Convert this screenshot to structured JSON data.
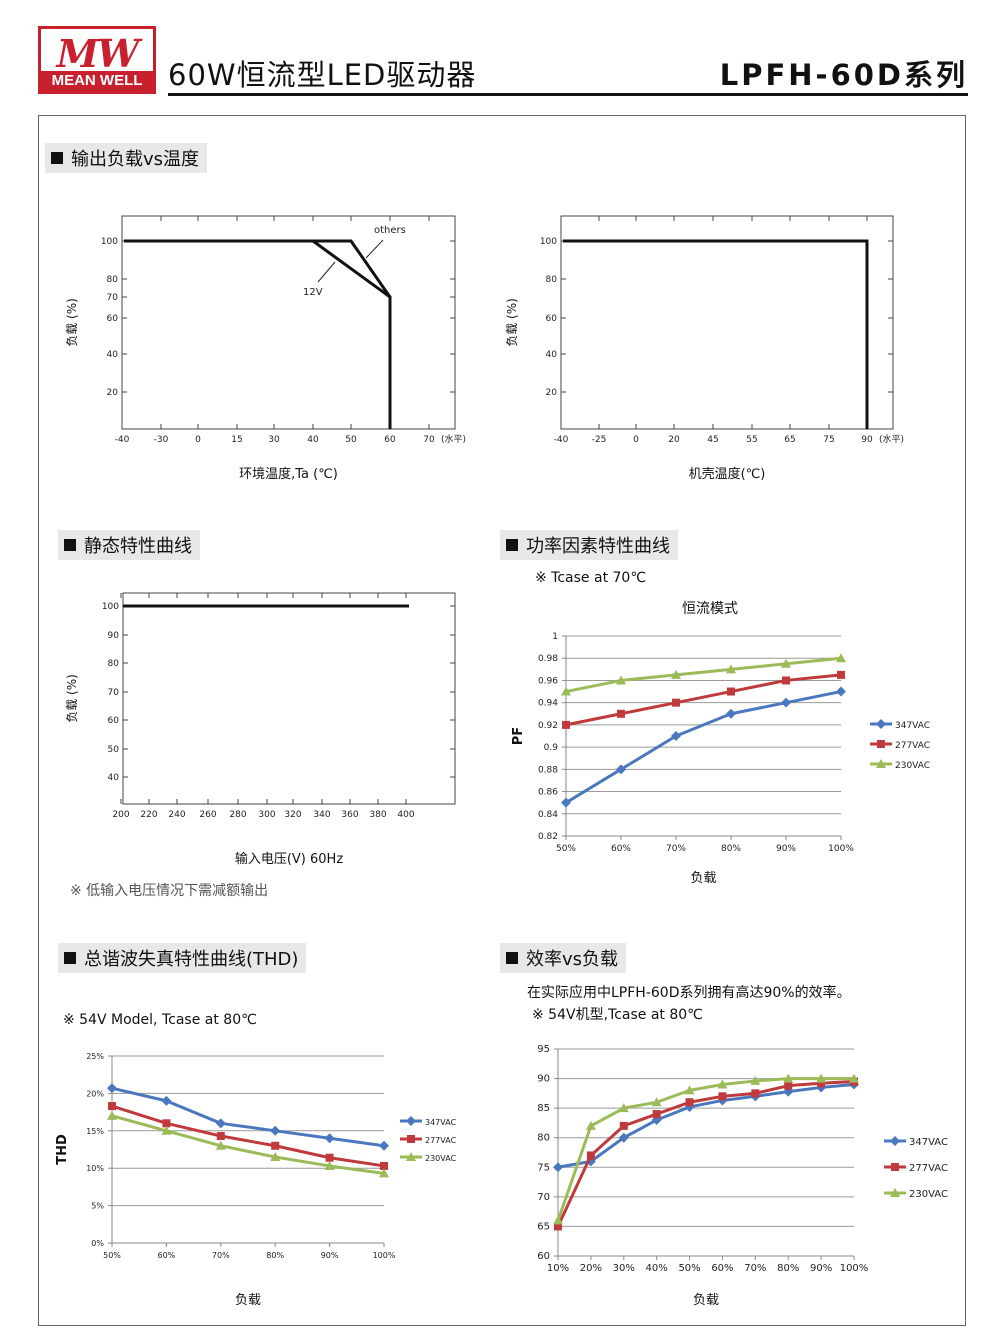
{
  "header": {
    "logo_top": "MW",
    "logo_bottom": "MEAN WELL",
    "title": "60W恒流型LED驱动器",
    "series": "LPFH-60D系列"
  },
  "sections": {
    "derating": "输出负载vs温度",
    "static": "静态特性曲线",
    "pf": "功率因素特性曲线",
    "thd": "总谐波失真特性曲线(THD)",
    "eff": "效率vs负载"
  },
  "notes": {
    "static_note": "※ 低输入电压情况下需减额输出",
    "pf_note": "※ Tcase at 70℃",
    "pf_mode": "恒流模式",
    "thd_note": "※ 54V Model, Tcase at 80℃",
    "eff_desc": "在实际应用中LPFH-60D系列拥有高达90%的效率。",
    "eff_note": "※ 54V机型,Tcase at 80℃"
  },
  "colors": {
    "347VAC": "#4a78be",
    "277VAC": "#c0393b",
    "230VAC": "#9bbb59"
  },
  "chart_data": [
    {
      "type": "line",
      "id": "derating_ambient",
      "xlabel": "环境温度,Ta (℃)",
      "x_unit": "(水平)",
      "ylabel": "负载 (%)",
      "x_ticks": [
        "-40",
        "-30",
        "0",
        "15",
        "30",
        "40",
        "50",
        "60",
        "70"
      ],
      "y_ticks": [
        "100",
        "80",
        "70",
        "60",
        "40",
        "20"
      ],
      "series": [
        {
          "name": "others",
          "points": [
            [
              "-40",
              100
            ],
            [
              "50",
              100
            ],
            [
              "60",
              70
            ],
            [
              "60",
              0
            ]
          ]
        },
        {
          "name": "12V",
          "points": [
            [
              "-40",
              100
            ],
            [
              "40",
              100
            ],
            [
              "60",
              70
            ],
            [
              "60",
              0
            ]
          ]
        }
      ]
    },
    {
      "type": "line",
      "id": "derating_case",
      "xlabel": "机壳温度(℃)",
      "x_unit": "(水平)",
      "ylabel": "负载 (%)",
      "x_ticks": [
        "-40",
        "-25",
        "0",
        "20",
        "45",
        "55",
        "65",
        "75",
        "90"
      ],
      "y_ticks": [
        "100",
        "80",
        "60",
        "40",
        "20"
      ],
      "series": [
        {
          "name": "",
          "points": [
            [
              "-40",
              100
            ],
            [
              "90",
              100
            ],
            [
              "90",
              0
            ]
          ]
        }
      ]
    },
    {
      "type": "line",
      "id": "static",
      "xlabel": "输入电压(V) 60Hz",
      "ylabel": "负载 (%)",
      "x_ticks": [
        "200",
        "220",
        "240",
        "260",
        "280",
        "300",
        "320",
        "340",
        "360",
        "380",
        "400"
      ],
      "y_ticks": [
        "100",
        "90",
        "80",
        "70",
        "60",
        "50",
        "40"
      ],
      "series": [
        {
          "name": "",
          "points": [
            [
              200,
              100
            ],
            [
              400,
              100
            ]
          ]
        }
      ]
    },
    {
      "type": "line",
      "id": "pf",
      "xlabel": "负载",
      "ylabel": "PF",
      "x_ticks": [
        "50%",
        "60%",
        "70%",
        "80%",
        "90%",
        "100%"
      ],
      "y_ticks": [
        "0.82",
        "0.84",
        "0.86",
        "0.88",
        "0.9",
        "0.92",
        "0.94",
        "0.96",
        "0.98",
        "1"
      ],
      "ylim": [
        0.82,
        1
      ],
      "series": [
        {
          "name": "347VAC",
          "values": [
            0.85,
            0.88,
            0.91,
            0.93,
            0.94,
            0.95
          ]
        },
        {
          "name": "277VAC",
          "values": [
            0.92,
            0.93,
            0.94,
            0.95,
            0.96,
            0.965
          ]
        },
        {
          "name": "230VAC",
          "values": [
            0.95,
            0.96,
            0.965,
            0.97,
            0.975,
            0.98
          ]
        }
      ]
    },
    {
      "type": "line",
      "id": "thd",
      "xlabel": "负载",
      "ylabel": "THD",
      "x_ticks": [
        "50%",
        "60%",
        "70%",
        "80%",
        "90%",
        "100%"
      ],
      "y_ticks": [
        "0%",
        "5%",
        "10%",
        "15%",
        "20%",
        "25%"
      ],
      "ylim": [
        0,
        25
      ],
      "series": [
        {
          "name": "347VAC",
          "values": [
            20.7,
            19,
            16,
            15,
            14,
            13
          ]
        },
        {
          "name": "277VAC",
          "values": [
            18.3,
            16,
            14.3,
            13,
            11.4,
            10.3
          ]
        },
        {
          "name": "230VAC",
          "values": [
            17,
            15,
            13,
            11.5,
            10.3,
            9.3
          ]
        }
      ]
    },
    {
      "type": "line",
      "id": "efficiency",
      "xlabel": "负载",
      "ylabel": "",
      "x_ticks": [
        "10%",
        "20%",
        "30%",
        "40%",
        "50%",
        "60%",
        "70%",
        "80%",
        "90%",
        "100%"
      ],
      "y_ticks": [
        "60",
        "65",
        "70",
        "75",
        "80",
        "85",
        "90",
        "95"
      ],
      "ylim": [
        60,
        95
      ],
      "series": [
        {
          "name": "347VAC",
          "values": [
            75,
            76,
            80,
            83,
            85.2,
            86.3,
            87,
            87.8,
            88.5,
            89
          ]
        },
        {
          "name": "277VAC",
          "values": [
            65,
            77,
            82,
            84,
            86,
            87,
            87.5,
            88.8,
            89.2,
            89.5
          ]
        },
        {
          "name": "230VAC",
          "values": [
            66,
            82,
            85,
            86,
            88,
            89,
            89.6,
            90,
            90,
            90
          ]
        }
      ]
    }
  ]
}
